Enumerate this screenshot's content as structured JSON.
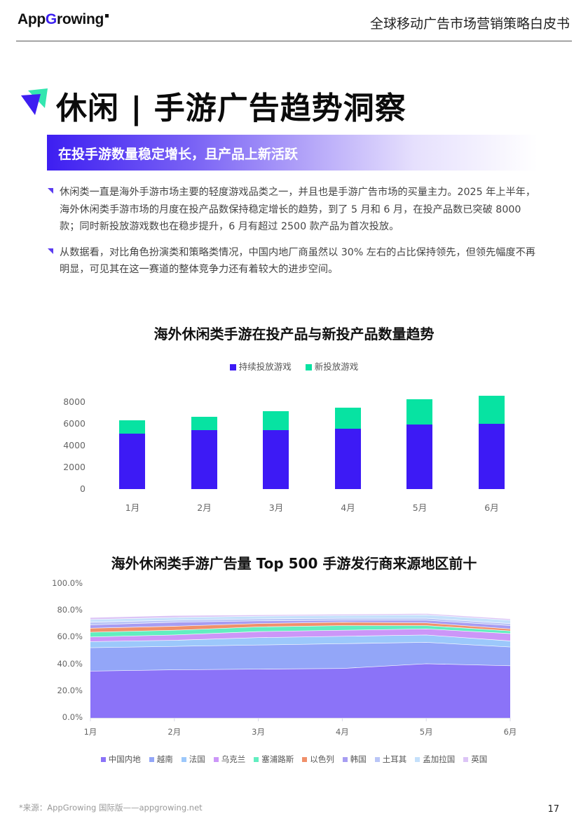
{
  "header": {
    "logo_text_pre": "App",
    "logo_text_g": "G",
    "logo_text_post": "rowing",
    "title": "全球移动广告市场营销策略白皮书"
  },
  "page_title": "休闲 | 手游广告趋势洞察",
  "subtitle": "在投手游数量稳定增长，且产品上新活跃",
  "bullets": [
    "休闲类一直是海外手游市场主要的轻度游戏品类之一，并且也是手游广告市场的买量主力。2025 年上半年，海外休闲类手游市场的月度在投产品数保持稳定增长的趋势，到了 5 月和 6 月，在投产品数已突破 8000 款；同时新投放游戏数也在稳步提升，6 月有超过 2500 款产品为首次投放。",
    "从数据看，对比角色扮演类和策略类情况，中国内地厂商虽然以 30% 左右的占比保持领先，但领先幅度不再明显，可见其在这一赛道的整体竞争力还有着较大的进步空间。"
  ],
  "colors": {
    "accent": "#3d1ef1",
    "teal": "#07e3a2",
    "bar_blue": "#3d1af5"
  },
  "chart_data": [
    {
      "type": "bar",
      "stacked": true,
      "title": "海外休闲类手游在投产品与新投产品数量趋势",
      "categories": [
        "1月",
        "2月",
        "3月",
        "4月",
        "5月",
        "6月"
      ],
      "series": [
        {
          "name": "持续投放游戏",
          "color": "#3d1af5",
          "values": [
            5100,
            5400,
            5400,
            5550,
            5950,
            6000
          ]
        },
        {
          "name": "新投放游戏",
          "color": "#07e3a2",
          "values": [
            1200,
            1250,
            1750,
            1950,
            2300,
            2600
          ]
        }
      ],
      "yticks": [
        "0",
        "2000",
        "4000",
        "6000",
        "8000"
      ],
      "ylim": [
        0,
        8000
      ],
      "legend_position": "top",
      "grid": false
    },
    {
      "type": "area",
      "stacked": true,
      "title": "海外休闲类手游广告量 Top 500 手游发行商来源地区前十",
      "categories": [
        "1月",
        "2月",
        "3月",
        "4月",
        "5月",
        "6月"
      ],
      "yticks": [
        "0.0%",
        "20.0%",
        "40.0%",
        "60.0%",
        "80.0%",
        "100.0%"
      ],
      "ylim": [
        0,
        100
      ],
      "legend_position": "bottom",
      "series": [
        {
          "name": "中国内地",
          "color": "#8b73f8",
          "values": [
            35.0,
            36.0,
            36.5,
            37.0,
            40.5,
            39.0
          ]
        },
        {
          "name": "越南",
          "color": "#93a6f8",
          "values": [
            17.5,
            17.5,
            18.0,
            18.5,
            16.0,
            14.0
          ]
        },
        {
          "name": "法国",
          "color": "#9cc8fb",
          "values": [
            4.5,
            4.5,
            5.5,
            5.5,
            5.5,
            4.5
          ]
        },
        {
          "name": "乌克兰",
          "color": "#cc96f8",
          "values": [
            3.5,
            4.0,
            4.5,
            4.5,
            4.5,
            5.5
          ]
        },
        {
          "name": "塞浦路斯",
          "color": "#62eec0",
          "values": [
            3.5,
            3.5,
            3.5,
            3.5,
            2.5,
            2.0
          ]
        },
        {
          "name": "以色列",
          "color": "#f0906a",
          "values": [
            3.0,
            3.0,
            2.5,
            2.5,
            2.0,
            1.5
          ]
        },
        {
          "name": "韩国",
          "color": "#a79df2",
          "values": [
            2.5,
            3.0,
            2.0,
            1.5,
            2.0,
            2.5
          ]
        },
        {
          "name": "土耳其",
          "color": "#b9c5f7",
          "values": [
            2.0,
            1.5,
            1.5,
            1.5,
            1.5,
            1.5
          ]
        },
        {
          "name": "孟加拉国",
          "color": "#c4e0fb",
          "values": [
            2.0,
            2.0,
            2.0,
            2.0,
            2.5,
            2.5
          ]
        },
        {
          "name": "英国",
          "color": "#dcc4f6",
          "values": [
            1.5,
            1.5,
            1.0,
            1.0,
            1.0,
            1.0
          ]
        }
      ]
    }
  ],
  "footer": {
    "source": "*来源：AppGrowing 国际版——appgrowing.net",
    "page_number": "17"
  }
}
